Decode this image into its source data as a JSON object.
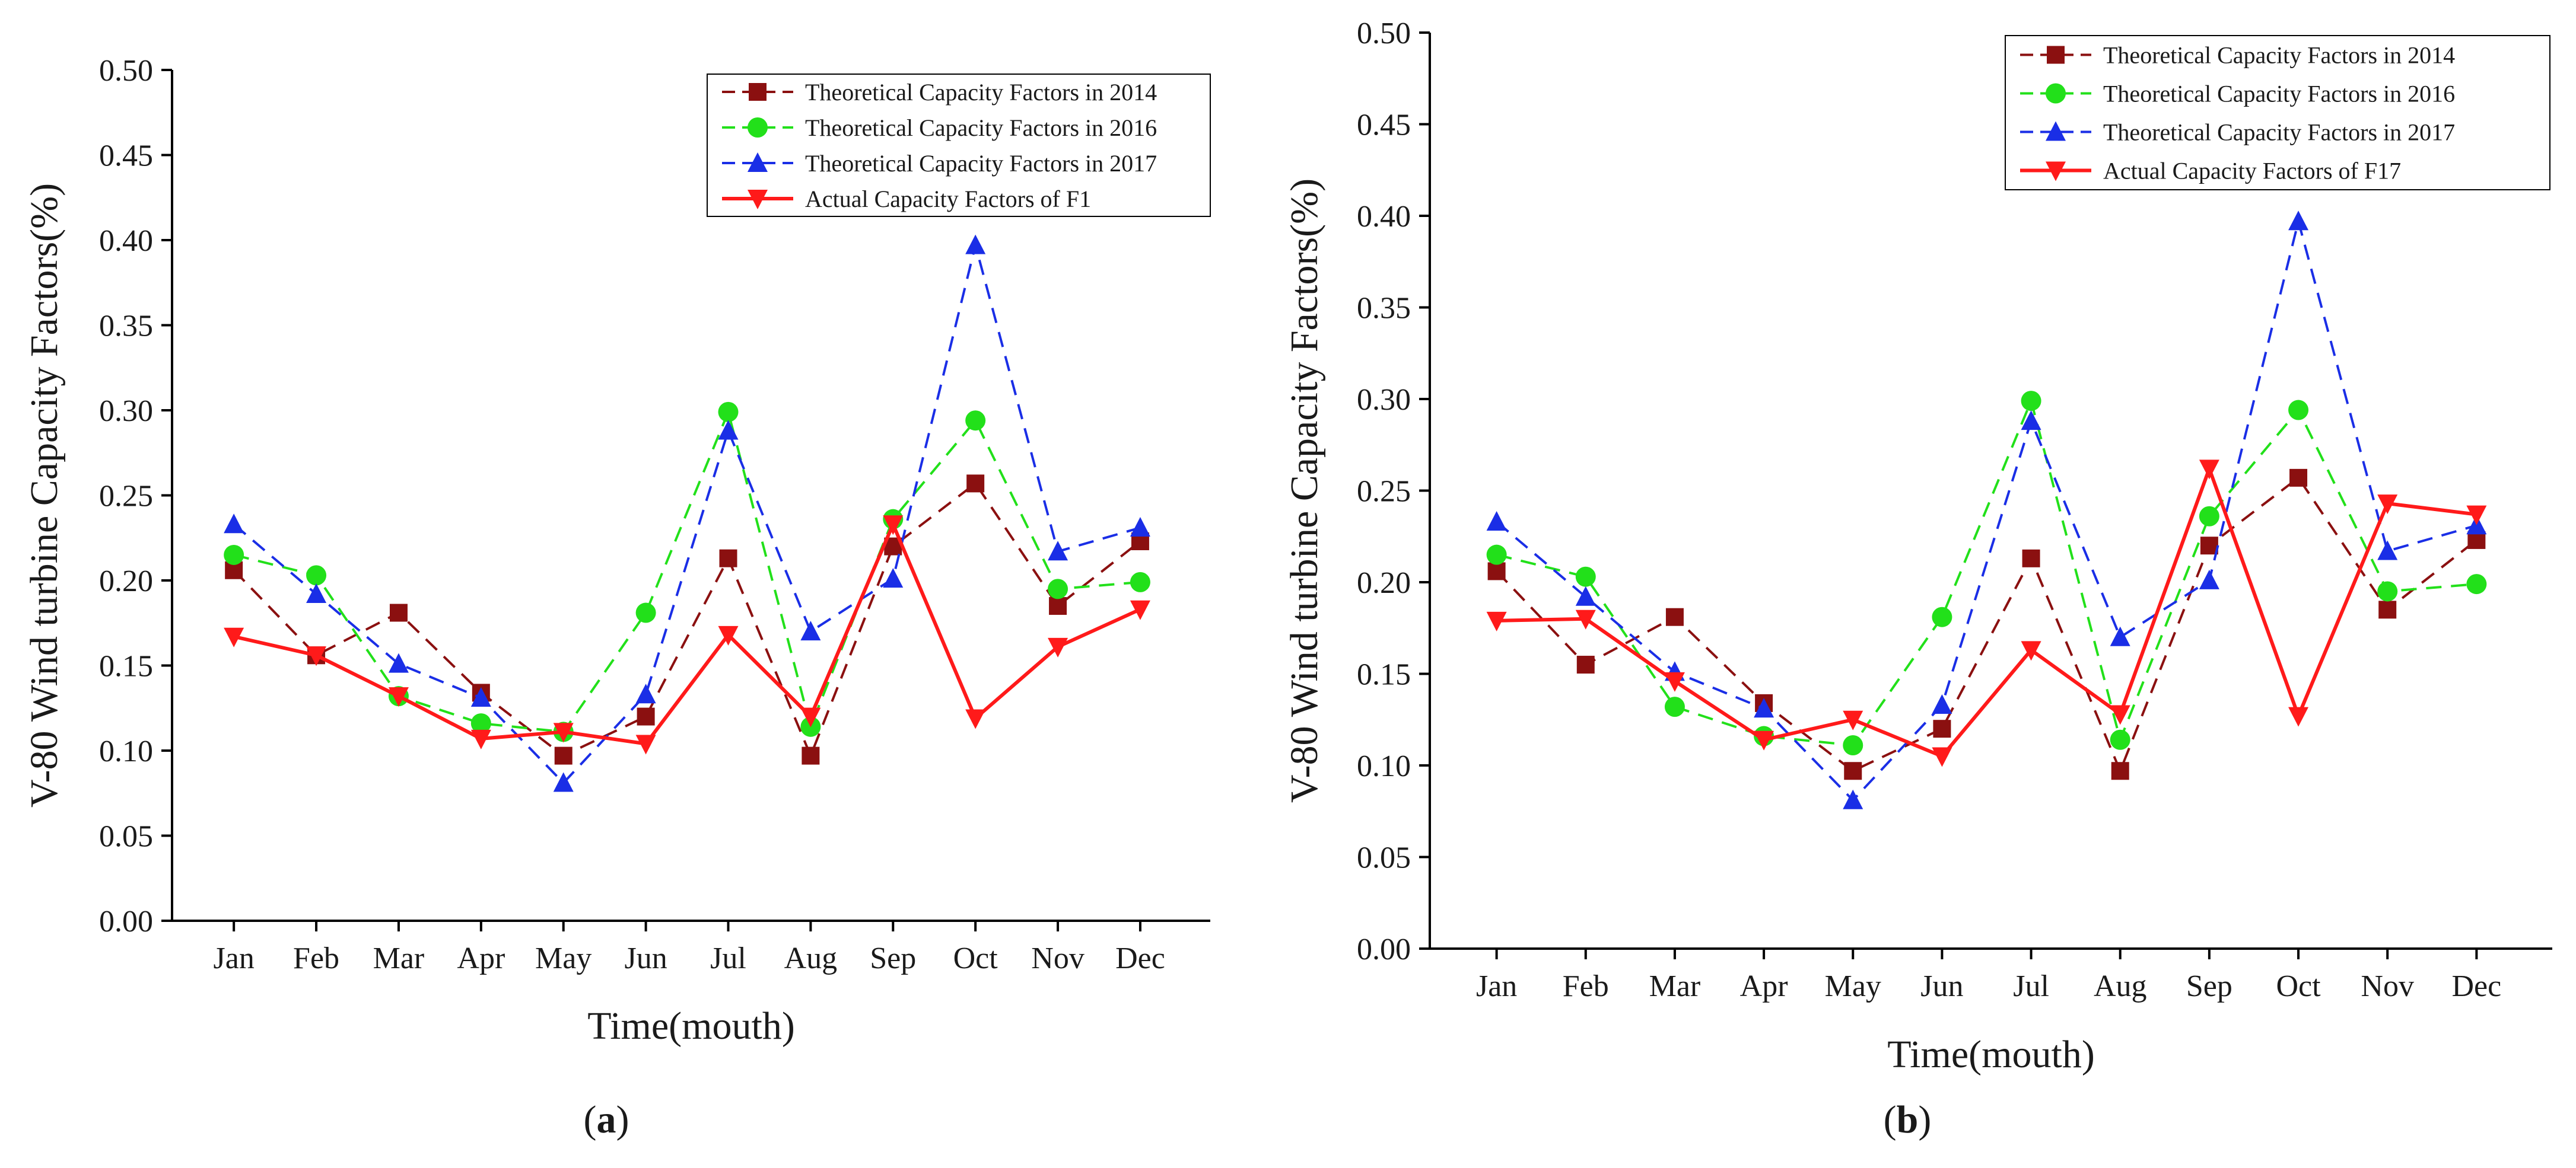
{
  "chart_data": [
    {
      "type": "line",
      "panel_label": "(a)",
      "panel_letter": "a",
      "xlabel": "Time(mouth)",
      "ylabel": "V-80 Wind turbine Capacity Factors(%)",
      "categories": [
        "Jan",
        "Feb",
        "Mar",
        "Apr",
        "May",
        "Jun",
        "Jul",
        "Aug",
        "Sep",
        "Oct",
        "Nov",
        "Dec"
      ],
      "ylim": [
        0,
        0.5
      ],
      "yticks": [
        "0.00",
        "0.05",
        "0.10",
        "0.15",
        "0.20",
        "0.25",
        "0.30",
        "0.35",
        "0.40",
        "0.45",
        "0.50"
      ],
      "legend_position": "top-right",
      "series": [
        {
          "name": "Theoretical Capacity Factors in 2014",
          "color": "#8b1010",
          "dash": "dashed",
          "marker": "square",
          "values": [
            0.206,
            0.156,
            0.181,
            0.134,
            0.097,
            0.12,
            0.213,
            0.097,
            0.22,
            0.257,
            0.185,
            0.223
          ]
        },
        {
          "name": "Theoretical Capacity Factors in 2016",
          "color": "#22e01a",
          "dash": "dashed",
          "marker": "circle",
          "values": [
            0.215,
            0.203,
            0.132,
            0.116,
            0.111,
            0.181,
            0.299,
            0.114,
            0.236,
            0.294,
            0.195,
            0.199
          ]
        },
        {
          "name": "Theoretical Capacity Factors in 2017",
          "color": "#1a2ee6",
          "dash": "dashed",
          "marker": "triangle-up",
          "values": [
            0.233,
            0.192,
            0.151,
            0.131,
            0.081,
            0.133,
            0.288,
            0.17,
            0.201,
            0.397,
            0.217,
            0.231
          ]
        },
        {
          "name": "Actual Capacity Factors of F1",
          "color": "#ff1a1a",
          "dash": "solid",
          "marker": "triangle-down",
          "values": [
            0.167,
            0.156,
            0.132,
            0.107,
            0.111,
            0.104,
            0.168,
            0.12,
            0.233,
            0.119,
            0.161,
            0.183
          ]
        }
      ]
    },
    {
      "type": "line",
      "panel_label": "(b)",
      "panel_letter": "b",
      "xlabel": "Time(mouth)",
      "ylabel": "V-80 Wind turbine Capacity Factors(%)",
      "categories": [
        "Jan",
        "Feb",
        "Mar",
        "Apr",
        "May",
        "Jun",
        "Jul",
        "Aug",
        "Sep",
        "Oct",
        "Nov",
        "Dec"
      ],
      "ylim": [
        0,
        0.5
      ],
      "yticks": [
        "0.00",
        "0.05",
        "0.10",
        "0.15",
        "0.20",
        "0.25",
        "0.30",
        "0.35",
        "0.40",
        "0.45",
        "0.50"
      ],
      "legend_position": "top-right",
      "series": [
        {
          "name": "Theoretical Capacity Factors in 2014",
          "color": "#8b1010",
          "dash": "dashed",
          "marker": "square",
          "values": [
            0.206,
            0.155,
            0.181,
            0.134,
            0.097,
            0.12,
            0.213,
            0.097,
            0.22,
            0.257,
            0.185,
            0.223
          ]
        },
        {
          "name": "Theoretical Capacity Factors in 2016",
          "color": "#22e01a",
          "dash": "dashed",
          "marker": "circle",
          "values": [
            0.215,
            0.203,
            0.132,
            0.116,
            0.111,
            0.181,
            0.299,
            0.114,
            0.236,
            0.294,
            0.195,
            0.199
          ]
        },
        {
          "name": "Theoretical Capacity Factors in 2017",
          "color": "#1a2ee6",
          "dash": "dashed",
          "marker": "triangle-up",
          "values": [
            0.233,
            0.192,
            0.151,
            0.131,
            0.081,
            0.133,
            0.288,
            0.17,
            0.201,
            0.397,
            0.217,
            0.231
          ]
        },
        {
          "name": "Actual Capacity Factors of F17",
          "color": "#ff1a1a",
          "dash": "solid",
          "marker": "triangle-down",
          "values": [
            0.179,
            0.18,
            0.146,
            0.114,
            0.125,
            0.105,
            0.163,
            0.128,
            0.262,
            0.127,
            0.243,
            0.237
          ]
        }
      ]
    }
  ]
}
